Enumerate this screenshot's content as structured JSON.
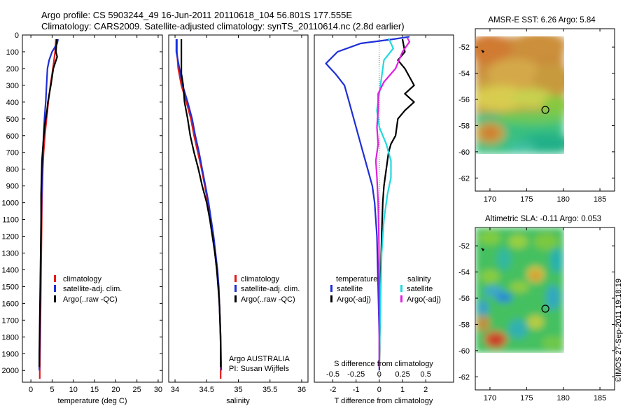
{
  "header": {
    "line1": "Argo profile: CS 5903244_49 16-Jun-2011 20110618_104 56.801S 177.555E",
    "line2": "Climatology: CARS2009. Satellite-adjusted climatology: synTS_20110614.nc (2.8d earlier)"
  },
  "credit": "©IMOS 27-Sep-2011 19:18:19",
  "colors": {
    "red": "#e41a1c",
    "blue": "#1f2fd6",
    "black": "#000000",
    "cyan": "#22d8e0",
    "magenta": "#e020e0"
  },
  "depth_ticks": [
    "0",
    "100",
    "200",
    "300",
    "400",
    "500",
    "600",
    "700",
    "800",
    "900",
    "1000",
    "1100",
    "1200",
    "1300",
    "1400",
    "1500",
    "1600",
    "1700",
    "1800",
    "1900",
    "2000"
  ],
  "panels": {
    "temperature": {
      "xlabel": "temperature (deg C)",
      "xticks": [
        "0",
        "5",
        "10",
        "15",
        "20",
        "25",
        "30"
      ],
      "legend": [
        "climatology",
        "satellite-adj. clim.",
        "Argo(..raw -QC)"
      ]
    },
    "salinity": {
      "xlabel": "salinity",
      "xticks": [
        "34",
        "34.5",
        "35",
        "35.5",
        "36"
      ],
      "legend": [
        "climatology",
        "satellite-adj. clim.",
        "Argo(..raw -QC)"
      ],
      "annotation": [
        "Argo AUSTRALIA",
        "PI: Susan Wijffels"
      ]
    },
    "difference": {
      "xlabel": "T difference from climatology",
      "top_label": "S difference from climatology",
      "xticks": [
        "-2",
        "-1",
        "0",
        "1",
        "2"
      ],
      "top_ticks": [
        "-0.5",
        "-0.25",
        "0",
        "0.25",
        "0.5"
      ],
      "legend_headers": [
        "temperature",
        "salinity"
      ],
      "legend_left": [
        "satellite",
        "Argo(-adj)"
      ],
      "legend_right": [
        "satellite",
        "Argo(-adj)"
      ]
    }
  },
  "maps": {
    "sst": {
      "title": "AMSR-E SST: 6.26 Argo: 5.84"
    },
    "sla": {
      "title": "Altimetric SLA: -0.11 Argo: 0.053"
    },
    "yticks": [
      "-52",
      "-54",
      "-56",
      "-58",
      "-60",
      "-62"
    ],
    "xticks": [
      "170",
      "175",
      "180",
      "185"
    ]
  },
  "chart_data": [
    {
      "type": "line",
      "title": "",
      "xlabel": "temperature (deg C)",
      "ylabel": "",
      "xlim": [
        -2,
        31
      ],
      "ylim": [
        2070,
        0
      ],
      "series": [
        {
          "name": "climatology",
          "color": "red",
          "points": [
            [
              5.9,
              25
            ],
            [
              5.7,
              100
            ],
            [
              5.2,
              200
            ],
            [
              4.6,
              300
            ],
            [
              4.1,
              400
            ],
            [
              3.7,
              500
            ],
            [
              3.3,
              600
            ],
            [
              3.0,
              700
            ],
            [
              2.8,
              800
            ],
            [
              2.7,
              900
            ],
            [
              2.6,
              1000
            ],
            [
              2.5,
              1200
            ],
            [
              2.4,
              1400
            ],
            [
              2.3,
              1600
            ],
            [
              2.2,
              1800
            ],
            [
              2.1,
              2000
            ],
            [
              2.1,
              2050
            ]
          ]
        },
        {
          "name": "satellite-adj. clim.",
          "color": "blue",
          "points": [
            [
              6.4,
              25
            ],
            [
              6.2,
              50
            ],
            [
              5.0,
              100
            ],
            [
              4.3,
              150
            ],
            [
              3.9,
              200
            ],
            [
              3.7,
              300
            ],
            [
              3.5,
              400
            ],
            [
              3.2,
              500
            ],
            [
              3.0,
              600
            ],
            [
              2.8,
              700
            ],
            [
              2.7,
              800
            ],
            [
              2.6,
              900
            ],
            [
              2.5,
              1000
            ],
            [
              2.4,
              1200
            ],
            [
              2.3,
              1400
            ],
            [
              2.2,
              1600
            ],
            [
              2.1,
              1800
            ],
            [
              2.0,
              2000
            ]
          ]
        },
        {
          "name": "Argo(..raw -QC)",
          "color": "black",
          "points": [
            [
              6.1,
              25
            ],
            [
              5.9,
              100
            ],
            [
              6.2,
              130
            ],
            [
              5.3,
              200
            ],
            [
              4.7,
              300
            ],
            [
              4.0,
              400
            ],
            [
              3.8,
              450
            ],
            [
              3.2,
              550
            ],
            [
              2.9,
              650
            ],
            [
              2.6,
              750
            ],
            [
              2.5,
              850
            ],
            [
              2.4,
              950
            ],
            [
              2.4,
              1100
            ],
            [
              2.3,
              1300
            ],
            [
              2.2,
              1500
            ],
            [
              2.1,
              1700
            ],
            [
              2.0,
              1900
            ],
            [
              2.0,
              1980
            ]
          ]
        }
      ]
    },
    {
      "type": "line",
      "title": "",
      "xlabel": "salinity",
      "ylabel": "",
      "xlim": [
        33.9,
        36.1
      ],
      "ylim": [
        2070,
        0
      ],
      "series": [
        {
          "name": "climatology",
          "color": "red",
          "points": [
            [
              34.03,
              25
            ],
            [
              34.03,
              100
            ],
            [
              34.05,
              200
            ],
            [
              34.1,
              300
            ],
            [
              34.18,
              400
            ],
            [
              34.25,
              500
            ],
            [
              34.3,
              600
            ],
            [
              34.36,
              700
            ],
            [
              34.42,
              800
            ],
            [
              34.47,
              900
            ],
            [
              34.52,
              1000
            ],
            [
              34.56,
              1100
            ],
            [
              34.6,
              1200
            ],
            [
              34.63,
              1300
            ],
            [
              34.66,
              1400
            ],
            [
              34.69,
              1500
            ],
            [
              34.7,
              1600
            ],
            [
              34.71,
              1700
            ],
            [
              34.72,
              1800
            ],
            [
              34.72,
              2000
            ],
            [
              34.72,
              2050
            ]
          ]
        },
        {
          "name": "satellite-adj. clim.",
          "color": "blue",
          "points": [
            [
              34.02,
              25
            ],
            [
              34.02,
              100
            ],
            [
              34.07,
              200
            ],
            [
              34.12,
              300
            ],
            [
              34.2,
              400
            ],
            [
              34.27,
              500
            ],
            [
              34.32,
              600
            ],
            [
              34.38,
              700
            ],
            [
              34.43,
              800
            ],
            [
              34.48,
              900
            ],
            [
              34.53,
              1000
            ],
            [
              34.57,
              1100
            ],
            [
              34.61,
              1200
            ],
            [
              34.64,
              1300
            ],
            [
              34.67,
              1400
            ],
            [
              34.69,
              1500
            ],
            [
              34.7,
              1600
            ],
            [
              34.71,
              1700
            ],
            [
              34.72,
              1800
            ],
            [
              34.73,
              2000
            ]
          ]
        },
        {
          "name": "Argo(..raw -QC)",
          "color": "black",
          "points": [
            [
              34.1,
              25
            ],
            [
              34.1,
              150
            ],
            [
              34.1,
              230
            ],
            [
              34.13,
              300
            ],
            [
              34.15,
              400
            ],
            [
              34.2,
              500
            ],
            [
              34.24,
              600
            ],
            [
              34.3,
              700
            ],
            [
              34.37,
              800
            ],
            [
              34.43,
              900
            ],
            [
              34.5,
              1000
            ],
            [
              34.55,
              1100
            ],
            [
              34.59,
              1200
            ],
            [
              34.63,
              1300
            ],
            [
              34.66,
              1400
            ],
            [
              34.68,
              1500
            ],
            [
              34.7,
              1600
            ],
            [
              34.71,
              1700
            ],
            [
              34.72,
              1850
            ],
            [
              34.72,
              1980
            ]
          ]
        }
      ]
    },
    {
      "type": "line",
      "title": "",
      "xlabel": "T difference from climatology",
      "top_xlabel": "S difference from climatology",
      "ylabel": "",
      "xlim": [
        -2.8,
        3.2
      ],
      "ylim": [
        2070,
        0
      ],
      "series": [
        {
          "name": "temperature satellite",
          "color": "blue",
          "points": [
            [
              1.3,
              10
            ],
            [
              0.6,
              25
            ],
            [
              -0.8,
              50
            ],
            [
              -1.8,
              100
            ],
            [
              -2.3,
              170
            ],
            [
              -1.9,
              230
            ],
            [
              -1.5,
              300
            ],
            [
              -1.3,
              400
            ],
            [
              -1.1,
              500
            ],
            [
              -0.9,
              600
            ],
            [
              -0.7,
              700
            ],
            [
              -0.5,
              800
            ],
            [
              -0.3,
              900
            ],
            [
              -0.2,
              1000
            ],
            [
              -0.1,
              1200
            ],
            [
              -0.05,
              1500
            ],
            [
              0.0,
              1800
            ],
            [
              0.0,
              2000
            ]
          ]
        },
        {
          "name": "temperature Argo(-adj)",
          "color": "black",
          "points": [
            [
              1.0,
              25
            ],
            [
              1.1,
              100
            ],
            [
              0.8,
              150
            ],
            [
              1.1,
              200
            ],
            [
              1.5,
              300
            ],
            [
              1.1,
              350
            ],
            [
              1.5,
              400
            ],
            [
              1.1,
              450
            ],
            [
              0.8,
              500
            ],
            [
              0.7,
              600
            ],
            [
              0.5,
              650
            ],
            [
              0.4,
              700
            ],
            [
              0.3,
              800
            ],
            [
              0.2,
              900
            ],
            [
              0.15,
              1000
            ],
            [
              0.1,
              1200
            ],
            [
              0.05,
              1500
            ],
            [
              0.02,
              1800
            ],
            [
              0.0,
              1980
            ]
          ]
        },
        {
          "name": "salinity satellite",
          "color": "cyan",
          "points": [
            [
              0.4,
              20
            ],
            [
              0.5,
              50
            ],
            [
              0.6,
              80
            ],
            [
              0.2,
              150
            ],
            [
              0.1,
              250
            ],
            [
              0.0,
              350
            ],
            [
              -0.1,
              450
            ],
            [
              0.0,
              550
            ],
            [
              0.3,
              650
            ],
            [
              0.5,
              750
            ],
            [
              0.5,
              850
            ],
            [
              0.35,
              950
            ],
            [
              0.2,
              1100
            ],
            [
              0.1,
              1300
            ],
            [
              0.05,
              1600
            ],
            [
              0.0,
              1900
            ],
            [
              0.0,
              1950
            ]
          ]
        },
        {
          "name": "salinity Argo(-adj)",
          "color": "magenta",
          "points": [
            [
              1.2,
              15
            ],
            [
              1.3,
              40
            ],
            [
              1.0,
              100
            ],
            [
              0.7,
              200
            ],
            [
              0.2,
              280
            ],
            [
              -0.05,
              350
            ],
            [
              -0.05,
              450
            ],
            [
              -0.1,
              550
            ],
            [
              -0.05,
              650
            ],
            [
              -0.15,
              750
            ],
            [
              -0.1,
              850
            ],
            [
              -0.05,
              1000
            ],
            [
              -0.02,
              1200
            ],
            [
              0.0,
              1500
            ],
            [
              0.0,
              1800
            ],
            [
              0.0,
              1980
            ]
          ]
        }
      ]
    },
    {
      "type": "heatmap",
      "title": "AMSR-E SST: 6.26 Argo: 5.84",
      "xlim": [
        168,
        187
      ],
      "ylim": [
        -63,
        -50.6
      ],
      "data_extent": {
        "lon": [
          168.5,
          180.2
        ],
        "lat": [
          -60.2,
          -50.6
        ]
      },
      "argo_location": [
        177.555,
        -56.801
      ]
    },
    {
      "type": "heatmap",
      "title": "Altimetric SLA: -0.11 Argo: 0.053",
      "xlim": [
        168,
        187
      ],
      "ylim": [
        -63,
        -50.6
      ],
      "data_extent": {
        "lon": [
          168.5,
          180.2
        ],
        "lat": [
          -60.2,
          -50.6
        ]
      },
      "argo_location": [
        177.555,
        -56.801
      ]
    }
  ]
}
